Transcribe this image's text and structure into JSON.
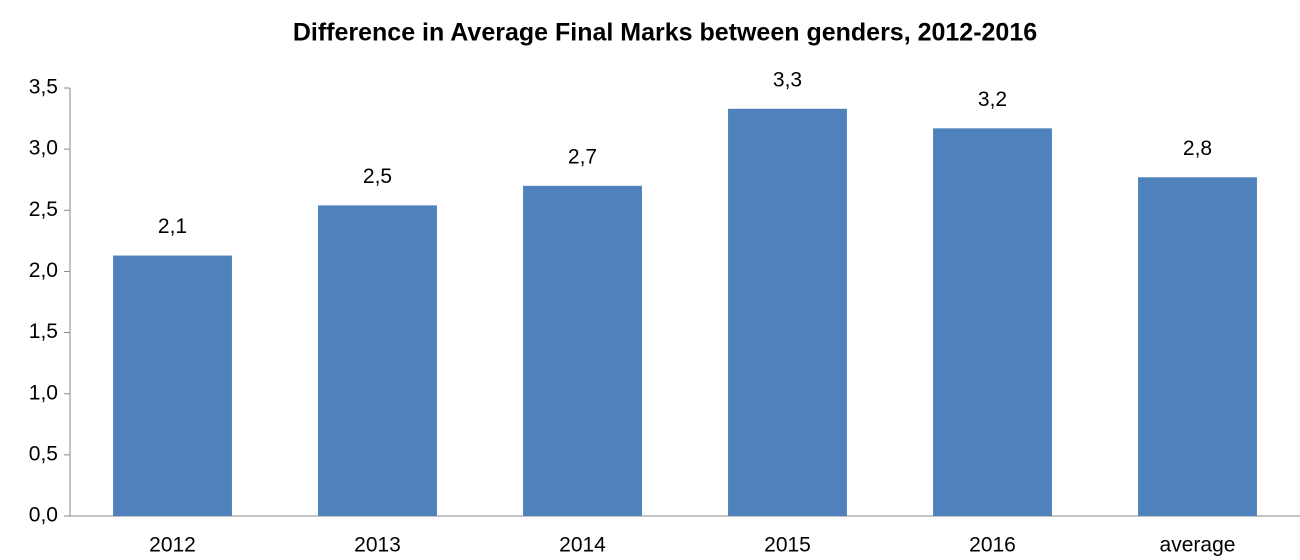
{
  "chart_data": {
    "type": "bar",
    "title": "Difference in Average Final Marks between genders, 2012-2016",
    "categories": [
      "2012",
      "2013",
      "2014",
      "2015",
      "2016",
      "average"
    ],
    "values": [
      2.13,
      2.54,
      2.7,
      3.33,
      3.17,
      2.77
    ],
    "value_labels": [
      "2,1",
      "2,5",
      "2,7",
      "3,3",
      "3,2",
      "2,8"
    ],
    "color": "#4f81bd",
    "ylim": [
      0,
      3.5
    ],
    "yticks": [
      {
        "value": 0,
        "label": "0,0"
      },
      {
        "value": 0.5,
        "label": "0,5"
      },
      {
        "value": 1,
        "label": "1,0"
      },
      {
        "value": 1.5,
        "label": "1,5"
      },
      {
        "value": 2,
        "label": "2,0"
      },
      {
        "value": 2.5,
        "label": "2,5"
      },
      {
        "value": 3,
        "label": "3,0"
      },
      {
        "value": 3.5,
        "label": "3,5"
      }
    ],
    "grid": false
  }
}
